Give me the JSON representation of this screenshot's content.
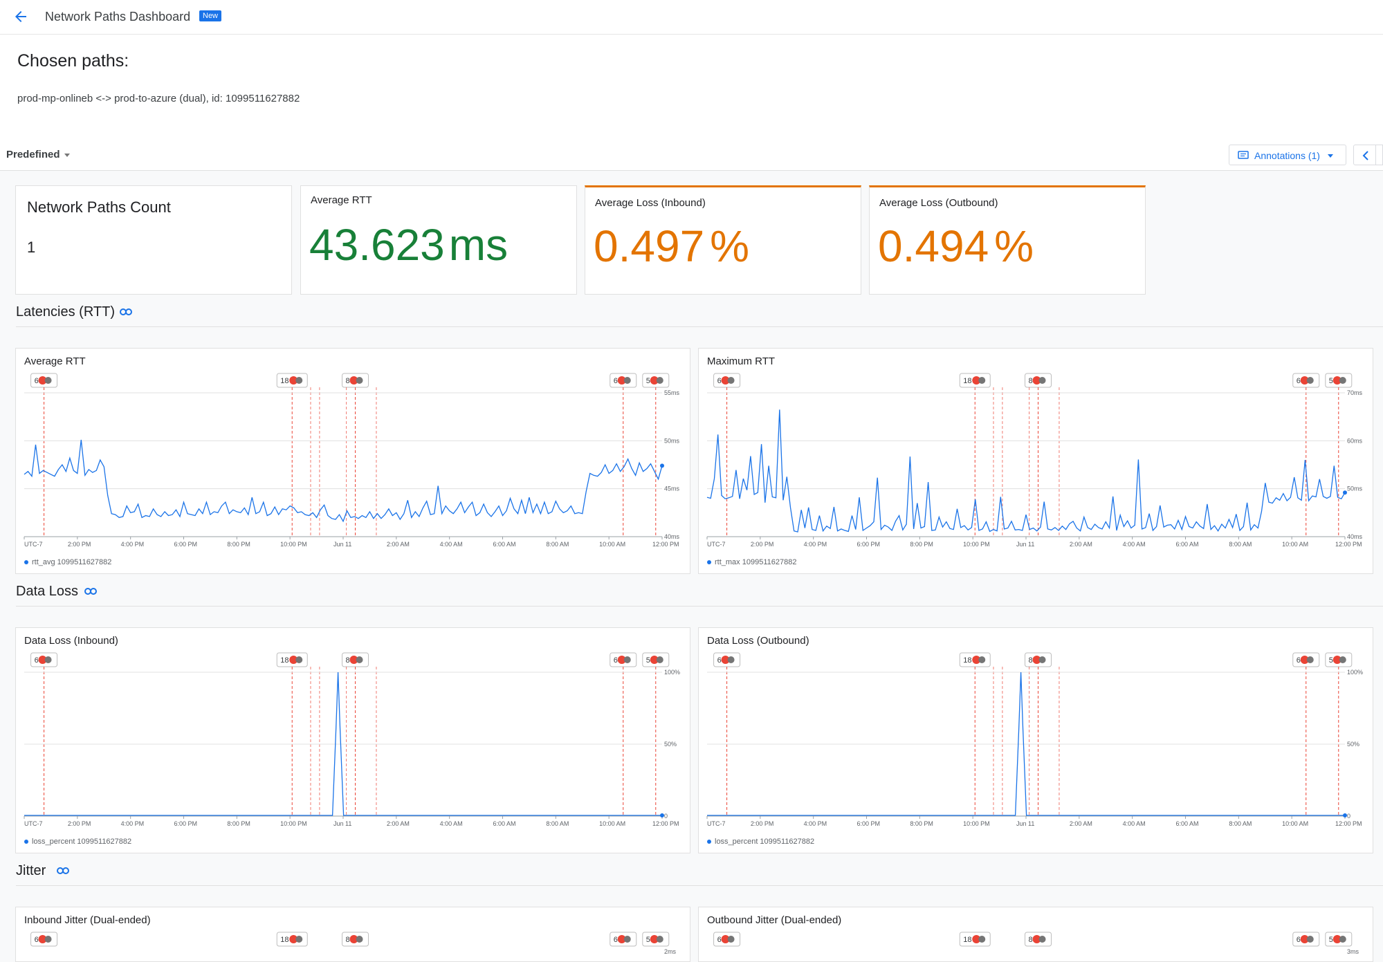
{
  "header": {
    "title": "Network Paths Dashboard",
    "badge": "New"
  },
  "chosen": {
    "heading": "Chosen paths:",
    "path": "prod-mp-onlineb <-> prod-to-azure (dual), id: 1099511627882"
  },
  "toolbar": {
    "predefined": "Predefined",
    "annotations": "Annotations (1)"
  },
  "kpis": [
    {
      "title": "Network Paths Count",
      "value": "1",
      "unit": ""
    },
    {
      "title": "Average RTT",
      "value": "43.623",
      "unit": "ms"
    },
    {
      "title": "Average Loss (Inbound)",
      "value": "0.497",
      "unit": "%"
    },
    {
      "title": "Average Loss (Outbound)",
      "value": "0.494",
      "unit": "%"
    }
  ],
  "sections": {
    "latency": "Latencies (RTT)",
    "loss": "Data Loss",
    "jitter": "Jitter"
  },
  "time_ticks": [
    "UTC-7",
    "2:00 PM",
    "4:00 PM",
    "6:00 PM",
    "8:00 PM",
    "10:00 PM",
    "Jun 11",
    "2:00 AM",
    "4:00 AM",
    "6:00 AM",
    "8:00 AM",
    "10:00 AM",
    "12:00 PM"
  ],
  "annotation_markers": [
    "6",
    "18",
    "8",
    "6",
    "5"
  ],
  "colors": {
    "series": "#1a73e8",
    "green": "#188038",
    "orange": "#e37400",
    "annotation": "#ea4335"
  },
  "chart_data": [
    {
      "type": "line",
      "title": "Average RTT",
      "series": [
        {
          "name": "rtt_avg 1099511627882",
          "values": [
            46.5,
            46.8,
            46.3,
            49.6,
            46.6,
            46.9,
            46.7,
            46.5,
            46.3,
            47.0,
            47.5,
            46.8,
            48.2,
            46.9,
            46.6,
            50.1,
            46.4,
            47.0,
            46.7,
            46.9,
            48.0,
            47.3,
            44.3,
            42.4,
            42.3,
            42.0,
            42.1,
            43.2,
            42.5,
            42.6,
            43.4,
            42.0,
            42.2,
            42.1,
            42.9,
            42.3,
            42.1,
            42.6,
            42.2,
            42.3,
            42.8,
            42.1,
            43.6,
            42.4,
            42.3,
            42.2,
            42.9,
            42.4,
            43.6,
            42.3,
            42.6,
            42.5,
            43.2,
            43.6,
            42.4,
            42.8,
            42.6,
            42.5,
            43.0,
            42.3,
            44.1,
            42.4,
            42.6,
            43.6,
            42.2,
            42.4,
            43.1,
            42.3,
            42.9,
            42.8,
            43.2,
            43.0,
            42.5,
            42.6,
            42.3,
            42.2,
            42.5,
            42.0,
            42.8,
            43.3,
            42.2,
            41.9,
            41.8,
            42.3,
            41.6,
            42.7,
            42.0,
            42.1,
            41.9,
            42.2,
            42.0,
            42.6,
            41.9,
            42.4,
            41.9,
            42.3,
            42.9,
            42.2,
            42.5,
            41.8,
            42.4,
            43.8,
            42.0,
            42.6,
            42.1,
            43.0,
            43.7,
            42.3,
            42.4,
            45.3,
            42.4,
            43.2,
            42.7,
            42.4,
            42.9,
            43.6,
            42.5,
            43.1,
            43.6,
            42.2,
            42.5,
            43.4,
            42.5,
            42.1,
            42.6,
            43.2,
            42.2,
            42.7,
            44.0,
            42.9,
            42.4,
            43.8,
            42.4,
            44.1,
            42.5,
            43.4,
            42.4,
            43.6,
            42.4,
            42.6,
            43.7,
            42.9,
            42.5,
            42.7,
            43.2,
            42.4,
            42.5,
            42.4,
            44.7,
            46.6,
            46.4,
            46.3,
            46.7,
            47.5,
            46.6,
            46.9,
            47.6,
            46.8,
            47.3,
            48.1,
            47.1,
            46.4,
            47.7,
            46.8,
            47.1,
            47.6,
            46.8,
            46.0,
            47.4
          ]
        }
      ],
      "ylim": [
        40,
        55
      ],
      "y_ticks": [
        "55ms",
        "50ms",
        "45ms",
        "40ms"
      ]
    },
    {
      "type": "line",
      "title": "Maximum RTT",
      "series": [
        {
          "name": "rtt_max 1099511627882",
          "values": [
            48.2,
            48.0,
            52.1,
            61.3,
            48.6,
            47.9,
            48.1,
            48.4,
            53.9,
            47.9,
            52.1,
            49.7,
            56.8,
            48.8,
            49.2,
            59.3,
            47.1,
            54.8,
            48.3,
            48.1,
            66.5,
            47.6,
            52.5,
            46.1,
            41.2,
            41.0,
            45.6,
            41.8,
            46.1,
            41.5,
            41.3,
            44.4,
            41.2,
            42.2,
            41.7,
            46.2,
            41.2,
            41.6,
            41.3,
            41.1,
            44.4,
            41.5,
            48.2,
            41.3,
            41.8,
            42.3,
            43.1,
            52.3,
            41.5,
            42.4,
            42.0,
            41.3,
            43.2,
            44.4,
            41.4,
            42.6,
            56.7,
            41.6,
            47.0,
            41.8,
            42.1,
            51.4,
            41.3,
            41.4,
            44.1,
            42.0,
            43.1,
            41.7,
            41.5,
            45.8,
            41.9,
            42.3,
            41.4,
            41.9,
            47.8,
            41.3,
            41.6,
            43.1,
            41.1,
            41.5,
            41.2,
            48.3,
            41.6,
            41.8,
            43.2,
            41.4,
            41.5,
            41.3,
            44.6,
            41.5,
            41.8,
            41.2,
            42.0,
            47.3,
            41.6,
            41.4,
            41.9,
            41.3,
            42.2,
            41.5,
            42.7,
            43.2,
            41.8,
            41.2,
            44.1,
            41.9,
            41.5,
            42.6,
            41.9,
            41.6,
            43.1,
            41.8,
            48.4,
            41.3,
            44.5,
            42.1,
            43.3,
            41.8,
            42.4,
            56.1,
            41.6,
            41.9,
            44.8,
            41.3,
            42.1,
            46.5,
            42.0,
            42.4,
            42.5,
            41.6,
            43.4,
            41.5,
            44.2,
            42.1,
            41.8,
            43.1,
            42.2,
            41.7,
            46.8,
            41.5,
            42.3,
            41.2,
            42.6,
            41.8,
            43.6,
            41.9,
            44.7,
            41.3,
            42.1,
            47.1,
            41.4,
            42.5,
            41.8,
            45.3,
            51.2,
            47.2,
            47.0,
            48.1,
            47.6,
            49.0,
            47.5,
            48.2,
            52.4,
            48.1,
            47.6,
            56.0,
            47.5,
            48.5,
            48.3,
            52.0,
            48.4,
            48.0,
            48.4,
            54.8,
            48.2,
            47.9,
            49.2
          ]
        }
      ],
      "ylim": [
        40,
        70
      ],
      "y_ticks": [
        "70ms",
        "60ms",
        "50ms",
        "40ms"
      ]
    },
    {
      "type": "line",
      "title": "Data Loss (Inbound)",
      "series": [
        {
          "name": "loss_percent 1099511627882",
          "peak_value": 100
        }
      ],
      "ylim": [
        0,
        100
      ],
      "y_ticks": [
        "100%",
        "50%",
        "0"
      ]
    },
    {
      "type": "line",
      "title": "Data Loss (Outbound)",
      "series": [
        {
          "name": "loss_percent 1099511627882",
          "peak_value": 100
        }
      ],
      "ylim": [
        0,
        100
      ],
      "y_ticks": [
        "100%",
        "50%",
        "0"
      ]
    },
    {
      "type": "line",
      "title": "Inbound Jitter (Dual-ended)",
      "y_ticks": [
        "2ms"
      ]
    },
    {
      "type": "line",
      "title": "Outbound Jitter (Dual-ended)",
      "y_ticks": [
        "3ms"
      ]
    }
  ]
}
